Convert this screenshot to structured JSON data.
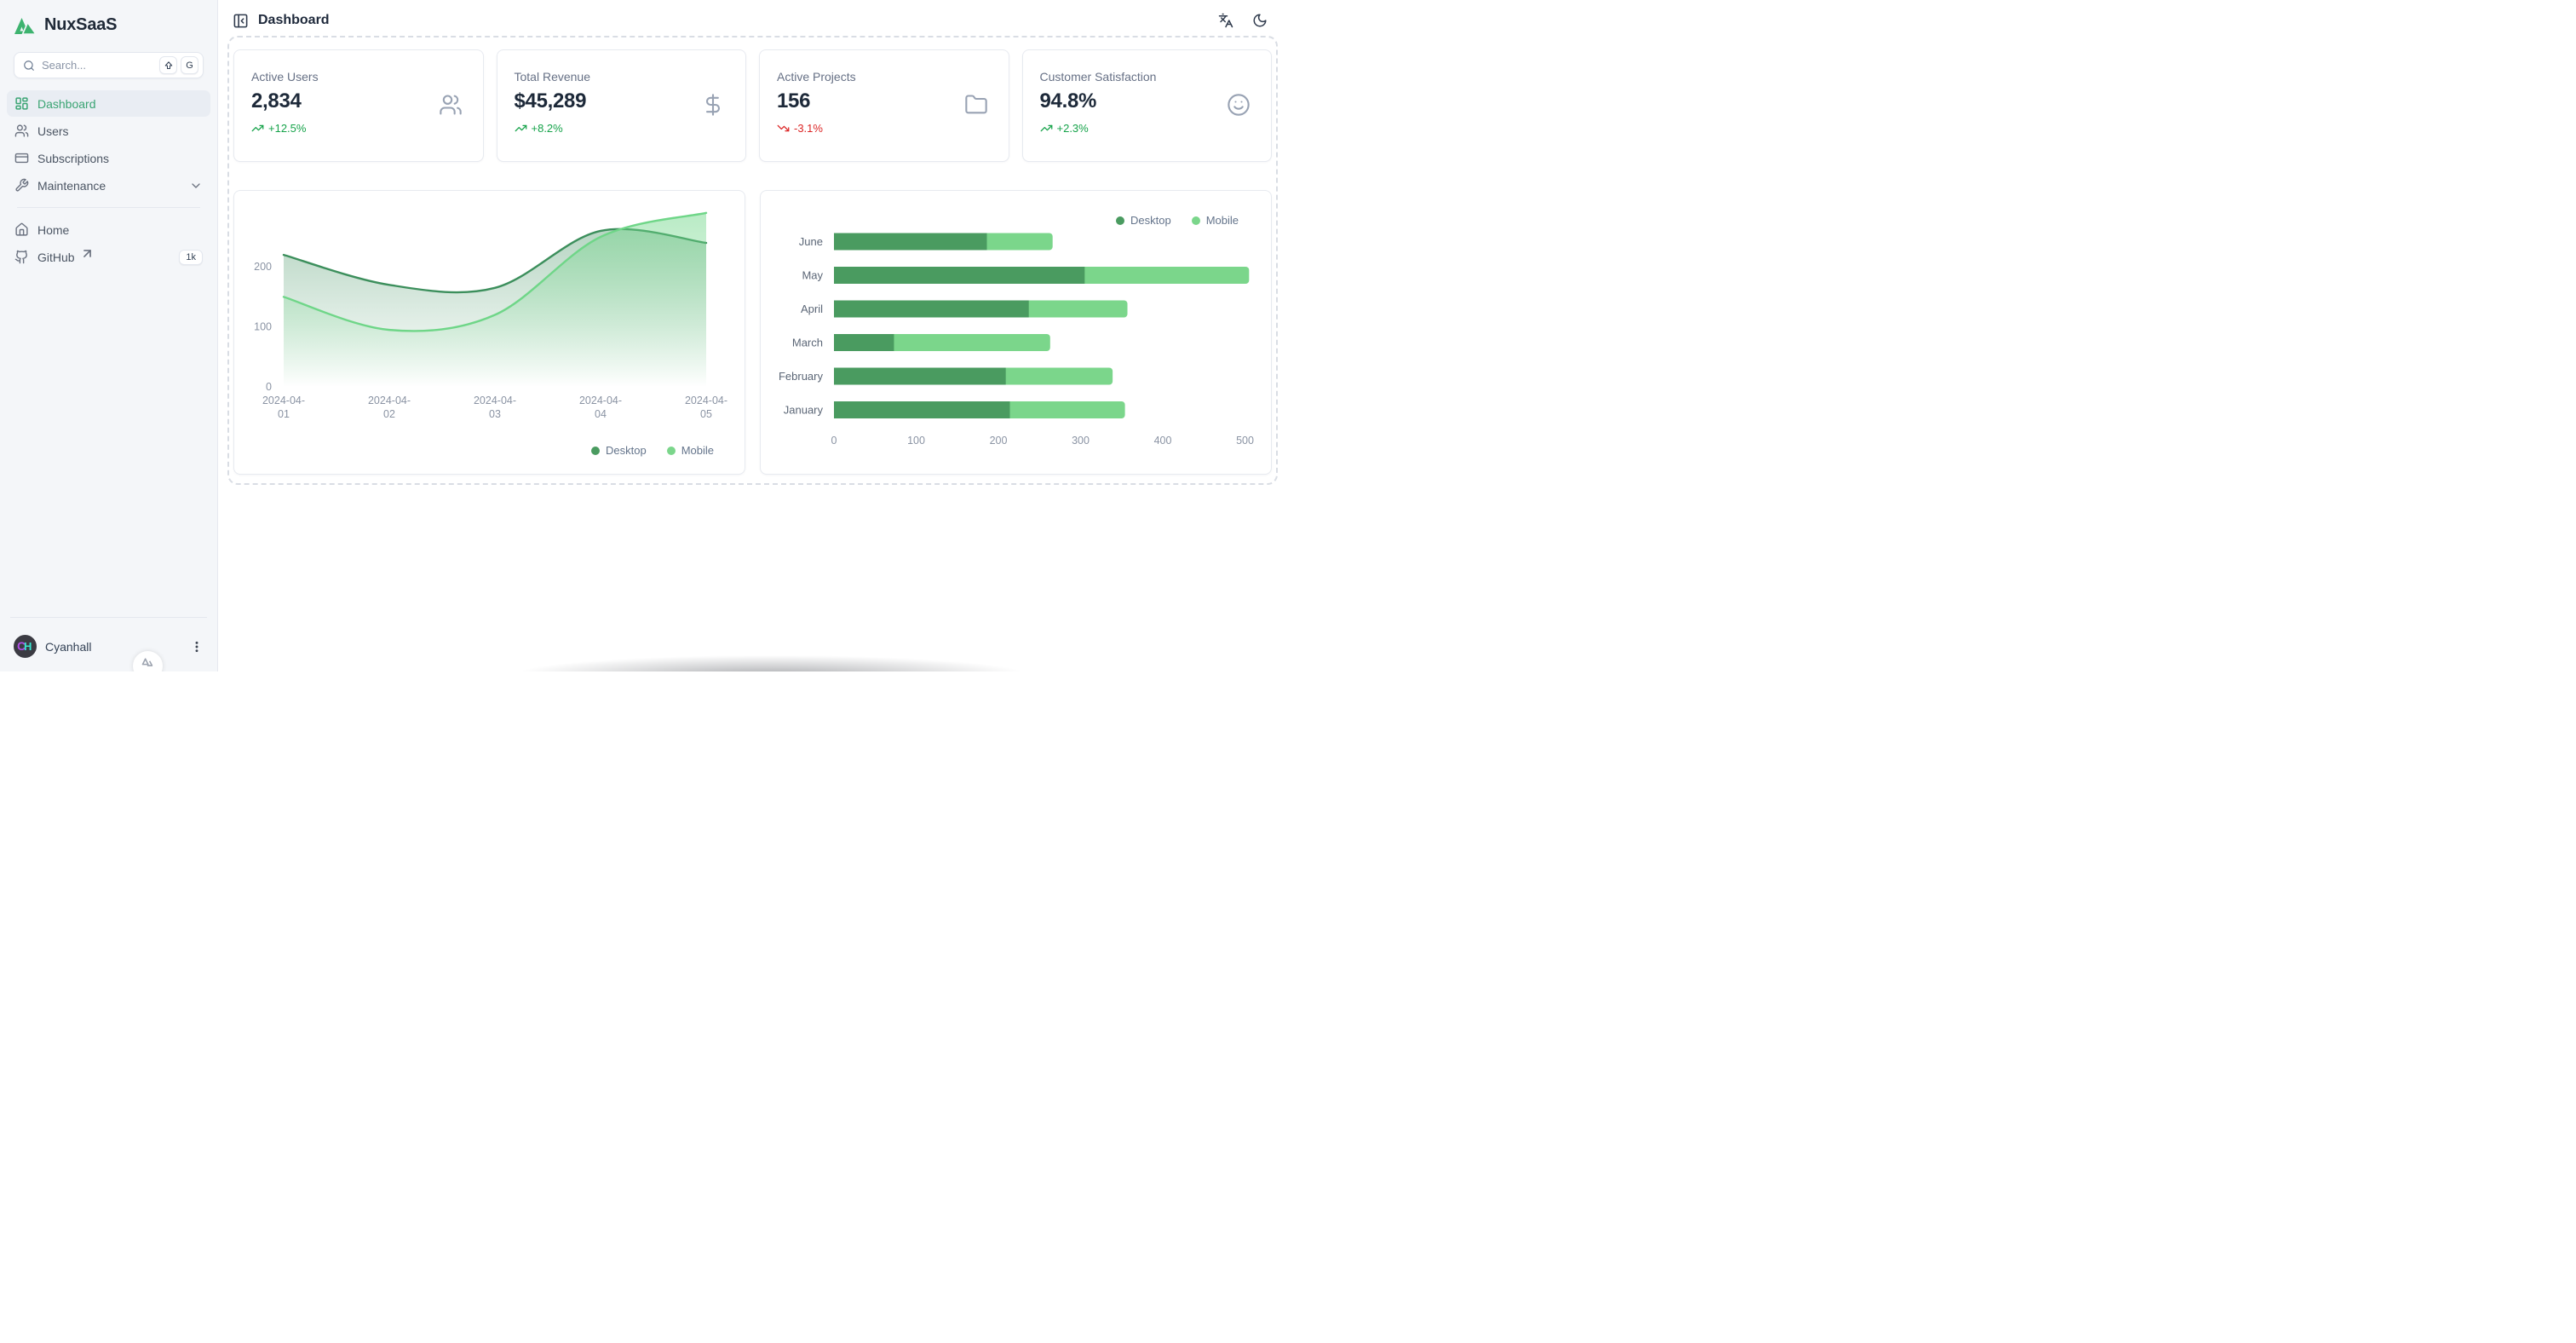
{
  "app": {
    "name": "NuxSaaS"
  },
  "sidebar": {
    "search": {
      "placeholder": "Search...",
      "shortcut_modifier_icon": "shift-arrow",
      "shortcut_key": "G"
    },
    "nav": [
      {
        "label": "Dashboard",
        "icon": "dashboard-grid-icon",
        "active": true
      },
      {
        "label": "Users",
        "icon": "users-icon",
        "active": false
      },
      {
        "label": "Subscriptions",
        "icon": "credit-card-icon",
        "active": false
      },
      {
        "label": "Maintenance",
        "icon": "wrench-icon",
        "active": false,
        "expandable": true
      }
    ],
    "links": [
      {
        "label": "Home",
        "icon": "home-icon"
      },
      {
        "label": "GitHub",
        "icon": "github-icon",
        "external": true,
        "badge": "1k"
      }
    ],
    "user": {
      "name": "Cyanhall"
    }
  },
  "header": {
    "title": "Dashboard"
  },
  "stats": [
    {
      "label": "Active Users",
      "value": "2,834",
      "delta": "+12.5%",
      "trend": "up",
      "icon": "users-icon"
    },
    {
      "label": "Total Revenue",
      "value": "$45,289",
      "delta": "+8.2%",
      "trend": "up",
      "icon": "dollar-icon"
    },
    {
      "label": "Active Projects",
      "value": "156",
      "delta": "-3.1%",
      "trend": "down",
      "icon": "folder-icon"
    },
    {
      "label": "Customer Satisfaction",
      "value": "94.8%",
      "delta": "+2.3%",
      "trend": "up",
      "icon": "smile-icon"
    }
  ],
  "colors": {
    "accent_green": "#3aa473",
    "desktop_series": "#4a9b60",
    "desktop_line": "#3c8f5c",
    "mobile_series": "#7bd68b",
    "mobile_line": "#6fd688",
    "up": "#16a34a",
    "down": "#dc2626"
  },
  "chart_data": [
    {
      "type": "area",
      "title": "",
      "x": [
        "2024-04-01",
        "2024-04-02",
        "2024-04-03",
        "2024-04-04",
        "2024-04-05"
      ],
      "series": [
        {
          "name": "Desktop",
          "values": [
            220,
            170,
            165,
            260,
            240
          ],
          "color": "#3c8f5c"
        },
        {
          "name": "Mobile",
          "values": [
            150,
            95,
            120,
            250,
            290
          ],
          "color": "#6fd688"
        }
      ],
      "ylim": [
        0,
        300
      ],
      "yticks": [
        0,
        100,
        200
      ],
      "grid": false,
      "smooth": true,
      "legend_position": "bottom-right"
    },
    {
      "type": "bar",
      "orientation": "horizontal",
      "stacked": true,
      "categories_top_to_bottom": [
        "June",
        "May",
        "April",
        "March",
        "February",
        "January"
      ],
      "series": [
        {
          "name": "Desktop",
          "values": [
            186,
            305,
            237,
            73,
            209,
            214
          ],
          "color": "#4a9b60"
        },
        {
          "name": "Mobile",
          "values": [
            80,
            200,
            120,
            190,
            130,
            140
          ],
          "color": "#7bd68b"
        }
      ],
      "xlim": [
        0,
        500
      ],
      "xticks": [
        0,
        100,
        200,
        300,
        400,
        500
      ],
      "grid": false,
      "legend_position": "top-right"
    }
  ]
}
